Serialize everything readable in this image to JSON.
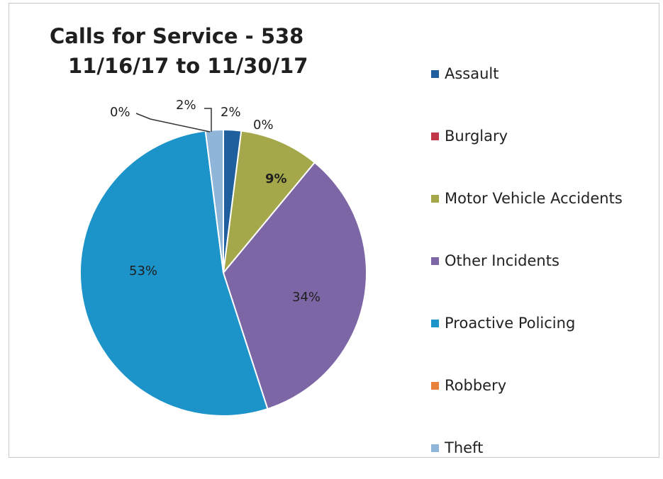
{
  "chart_data": {
    "type": "pie",
    "title": "Calls for Service - 538",
    "subtitle": "11/16/17 to 11/30/17",
    "legend_position": "right",
    "slices": [
      {
        "name": "Assault",
        "percent": 2,
        "label": "2%",
        "color": "#1f5f9e"
      },
      {
        "name": "Burglary",
        "percent": 0,
        "label": "0%",
        "color": "#c0384a"
      },
      {
        "name": "Motor Vehicle Accidents",
        "percent": 9,
        "label": "9%",
        "color": "#a4a84a"
      },
      {
        "name": "Other Incidents",
        "percent": 34,
        "label": "34%",
        "color": "#7d66a6"
      },
      {
        "name": "Proactive Policing",
        "percent": 53,
        "label": "53%",
        "color": "#1c93c9"
      },
      {
        "name": "Robbery",
        "percent": 0,
        "label": "0%",
        "color": "#e8823a"
      },
      {
        "name": "Theft",
        "percent": 2,
        "label": "2%",
        "color": "#8fb6d9"
      }
    ]
  }
}
